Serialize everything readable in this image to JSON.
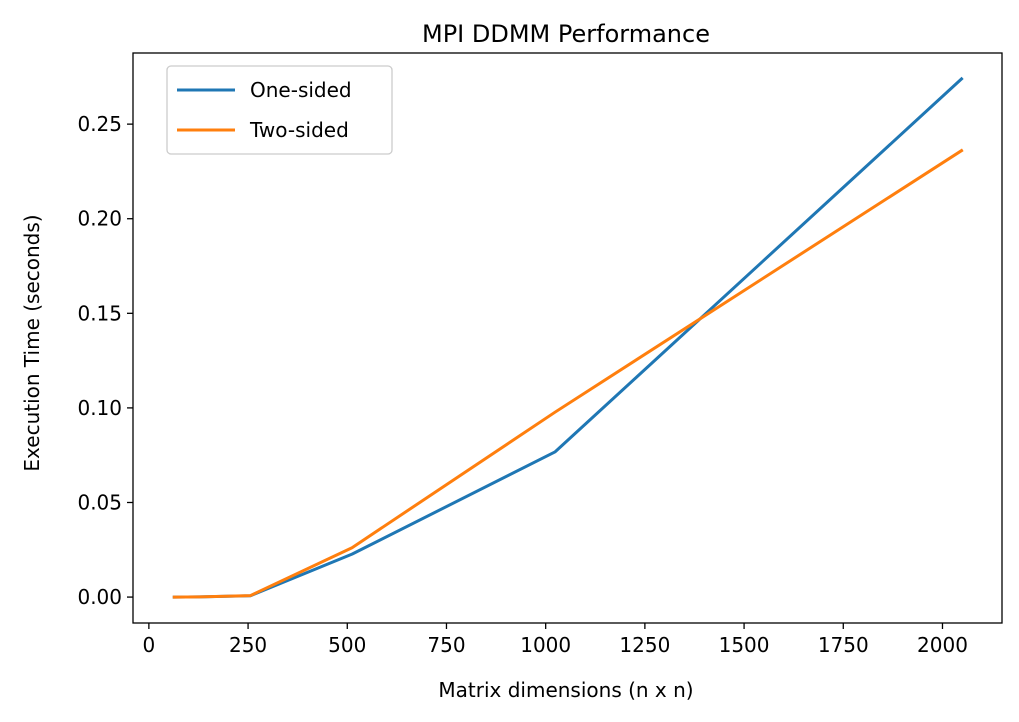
{
  "chart_data": {
    "type": "line",
    "title": "MPI DDMM Performance",
    "xlabel": "Matrix dimensions (n x n)",
    "ylabel": "Execution Time (seconds)",
    "xlim": [
      -40,
      2150
    ],
    "ylim": [
      -0.0137,
      0.2876
    ],
    "xticks": [
      0,
      250,
      500,
      750,
      1000,
      1250,
      1500,
      1750,
      2000
    ],
    "xtick_labels": [
      "0",
      "250",
      "500",
      "750",
      "1000",
      "1250",
      "1500",
      "1750",
      "2000"
    ],
    "yticks": [
      0.0,
      0.05,
      0.1,
      0.15,
      0.2,
      0.25
    ],
    "ytick_labels": [
      "0.00",
      "0.05",
      "0.10",
      "0.15",
      "0.20",
      "0.25"
    ],
    "grid": false,
    "legend_position": "upper-left",
    "series": [
      {
        "name": "One-sided",
        "color": "#1f77b4",
        "x": [
          64,
          128,
          256,
          512,
          1024,
          2048
        ],
        "y": [
          0.0,
          0.0001,
          0.0007,
          0.0227,
          0.0768,
          0.2739
        ]
      },
      {
        "name": "Two-sided",
        "color": "#ff7f0e",
        "x": [
          64,
          128,
          256,
          512,
          1024,
          2048
        ],
        "y": [
          0.0,
          0.0001,
          0.0008,
          0.0261,
          0.0978,
          0.236
        ]
      }
    ]
  }
}
